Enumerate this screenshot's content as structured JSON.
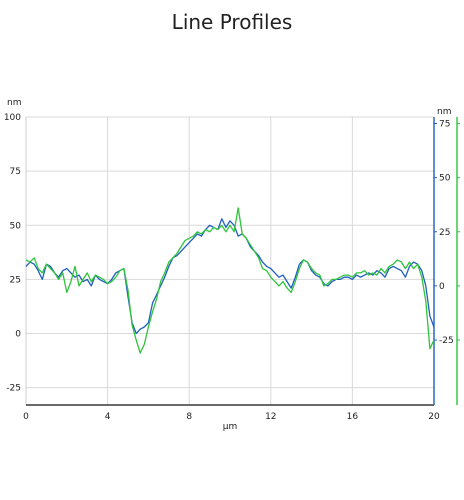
{
  "chart_data": {
    "type": "line",
    "title": "Line Profiles",
    "xlabel": "μm",
    "x_unit": "μm",
    "xlim": [
      0,
      20
    ],
    "x_ticks": [
      0,
      4,
      8,
      12,
      16,
      20
    ],
    "left_axis": {
      "unit": "nm",
      "ylim": [
        -33,
        100
      ],
      "ticks": [
        -25,
        0,
        25,
        50,
        75,
        100
      ]
    },
    "right_axis_blue": {
      "unit": "nm",
      "ylim": [
        -55,
        78
      ],
      "ticks": [
        -25,
        0,
        25,
        50,
        75
      ],
      "color": "#1f5fbf"
    },
    "right_axis_green": {
      "ylim": [
        -55,
        78
      ],
      "ticks": [
        -25,
        0,
        25,
        50,
        75
      ],
      "color": "#2ec43c"
    },
    "grid": true,
    "series": [
      {
        "axis": "left",
        "color": "#1f5fbf",
        "x": [
          0,
          0.2,
          0.4,
          0.6,
          0.8,
          1.0,
          1.2,
          1.4,
          1.6,
          1.8,
          2.0,
          2.2,
          2.4,
          2.6,
          2.8,
          3.0,
          3.2,
          3.4,
          3.6,
          3.8,
          4.0,
          4.2,
          4.4,
          4.6,
          4.8,
          5.0,
          5.2,
          5.4,
          5.6,
          5.8,
          6.0,
          6.2,
          6.4,
          6.6,
          6.8,
          7.0,
          7.2,
          7.4,
          7.6,
          7.8,
          8.0,
          8.2,
          8.4,
          8.6,
          8.8,
          9.0,
          9.2,
          9.4,
          9.6,
          9.8,
          10.0,
          10.2,
          10.4,
          10.6,
          10.8,
          11.0,
          11.2,
          11.4,
          11.6,
          11.8,
          12.0,
          12.2,
          12.4,
          12.6,
          12.8,
          13.0,
          13.2,
          13.4,
          13.6,
          13.8,
          14.0,
          14.2,
          14.4,
          14.6,
          14.8,
          15.0,
          15.2,
          15.4,
          15.6,
          15.8,
          16.0,
          16.2,
          16.4,
          16.6,
          16.8,
          17.0,
          17.2,
          17.4,
          17.6,
          17.8,
          18.0,
          18.2,
          18.4,
          18.6,
          18.8,
          19.0,
          19.2,
          19.4,
          19.6,
          19.8,
          20.0
        ],
        "y": [
          31,
          33,
          32,
          29,
          25,
          32,
          31,
          28,
          26,
          29,
          30,
          28,
          26,
          27,
          24,
          25,
          22,
          27,
          25,
          24,
          23,
          25,
          28,
          29,
          30,
          17,
          5,
          0,
          2,
          3,
          5,
          14,
          18,
          22,
          26,
          31,
          35,
          36,
          38,
          40,
          42,
          44,
          46,
          45,
          48,
          50,
          49,
          48,
          53,
          49,
          52,
          50,
          45,
          46,
          44,
          40,
          38,
          36,
          33,
          31,
          30,
          28,
          26,
          27,
          24,
          21,
          26,
          32,
          34,
          33,
          29,
          27,
          26,
          23,
          22,
          24,
          25,
          25,
          26,
          26,
          25,
          27,
          26,
          27,
          28,
          27,
          29,
          28,
          26,
          30,
          31,
          30,
          29,
          26,
          31,
          33,
          32,
          29,
          22,
          8,
          3
        ]
      },
      {
        "axis": "left",
        "color": "#2ec43c",
        "x": [
          0,
          0.2,
          0.4,
          0.6,
          0.8,
          1.0,
          1.2,
          1.4,
          1.6,
          1.8,
          2.0,
          2.2,
          2.4,
          2.6,
          2.8,
          3.0,
          3.2,
          3.4,
          3.6,
          3.8,
          4.0,
          4.2,
          4.4,
          4.6,
          4.8,
          5.0,
          5.2,
          5.4,
          5.6,
          5.8,
          6.0,
          6.2,
          6.4,
          6.6,
          6.8,
          7.0,
          7.2,
          7.4,
          7.6,
          7.8,
          8.0,
          8.2,
          8.4,
          8.6,
          8.8,
          9.0,
          9.2,
          9.4,
          9.6,
          9.8,
          10.0,
          10.2,
          10.4,
          10.6,
          10.8,
          11.0,
          11.2,
          11.4,
          11.6,
          11.8,
          12.0,
          12.2,
          12.4,
          12.6,
          12.8,
          13.0,
          13.2,
          13.4,
          13.6,
          13.8,
          14.0,
          14.2,
          14.4,
          14.6,
          14.8,
          15.0,
          15.2,
          15.4,
          15.6,
          15.8,
          16.0,
          16.2,
          16.4,
          16.6,
          16.8,
          17.0,
          17.2,
          17.4,
          17.6,
          17.8,
          18.0,
          18.2,
          18.4,
          18.6,
          18.8,
          19.0,
          19.2,
          19.4,
          19.6,
          19.8,
          20.0
        ],
        "y": [
          34,
          33,
          35,
          30,
          28,
          32,
          30,
          28,
          25,
          28,
          19,
          24,
          31,
          22,
          25,
          28,
          24,
          27,
          26,
          25,
          23,
          24,
          26,
          29,
          30,
          20,
          4,
          -3,
          -9,
          -5,
          3,
          10,
          16,
          24,
          28,
          33,
          35,
          37,
          40,
          43,
          44,
          45,
          47,
          46,
          48,
          47,
          49,
          48,
          50,
          47,
          50,
          47,
          58,
          46,
          44,
          41,
          38,
          35,
          30,
          29,
          26,
          24,
          22,
          24,
          21,
          19,
          24,
          30,
          34,
          33,
          30,
          28,
          27,
          22,
          23,
          25,
          25,
          26,
          27,
          27,
          26,
          28,
          28,
          29,
          27,
          28,
          27,
          30,
          28,
          31,
          32,
          34,
          33,
          30,
          33,
          30,
          32,
          26,
          15,
          -7,
          -3
        ]
      }
    ]
  }
}
